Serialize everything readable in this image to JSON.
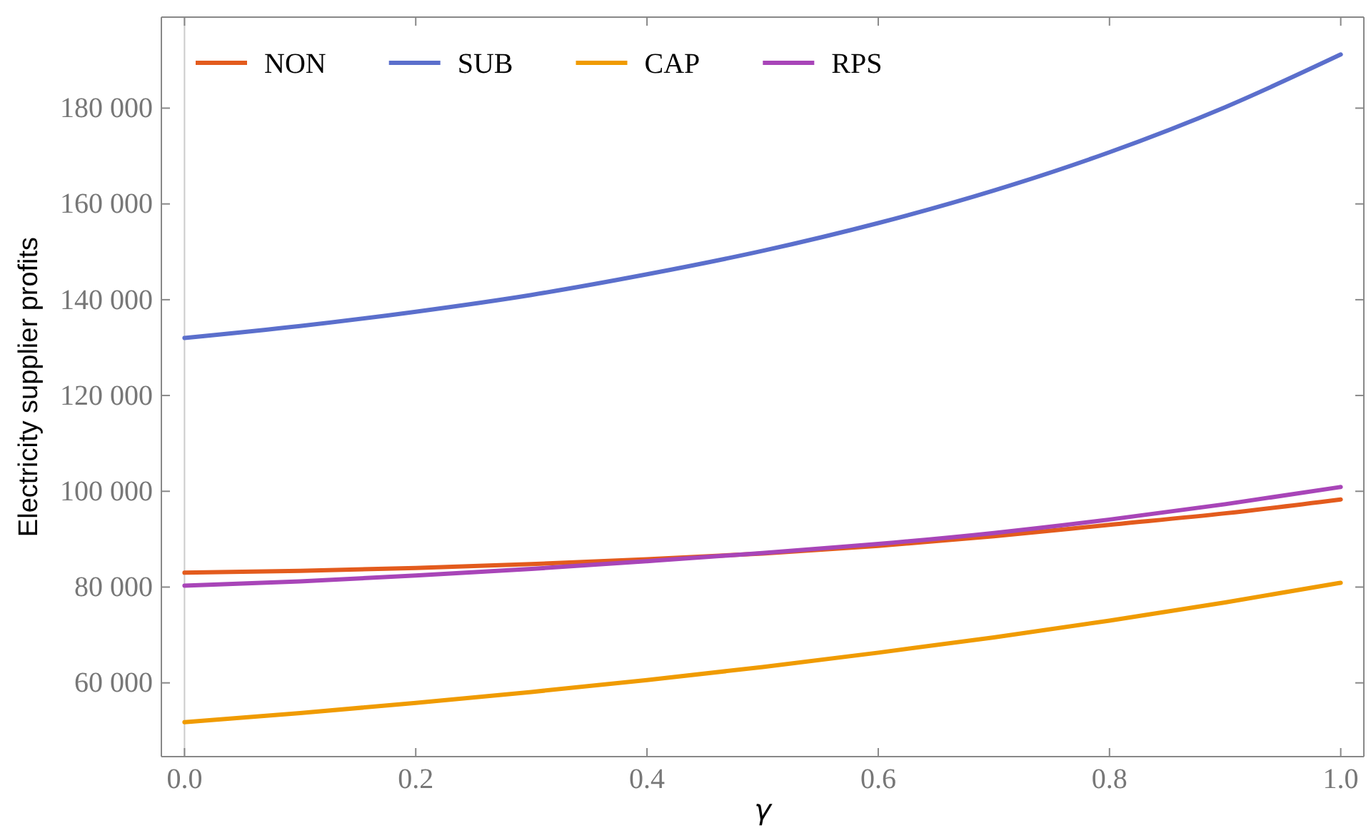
{
  "chart_data": {
    "type": "line",
    "xlabel": "γ",
    "ylabel": "Electricity supplier profits",
    "x": [
      0,
      0.1,
      0.2,
      0.3,
      0.4,
      0.5,
      0.6,
      0.7,
      0.8,
      0.9,
      1.0
    ],
    "series": [
      {
        "name": "NON",
        "color": "#e35b1d",
        "values": [
          83000,
          83400,
          84000,
          84800,
          85800,
          87000,
          88600,
          90600,
          93000,
          95400,
          98300
        ]
      },
      {
        "name": "SUB",
        "color": "#5b6fcc",
        "values": [
          132000,
          134500,
          137500,
          141000,
          145300,
          150200,
          156000,
          162800,
          170800,
          180200,
          191200
        ]
      },
      {
        "name": "CAP",
        "color": "#f09b00",
        "values": [
          51800,
          53700,
          55800,
          58100,
          60600,
          63300,
          66300,
          69500,
          73000,
          76800,
          80900
        ]
      },
      {
        "name": "RPS",
        "color": "#a845b8",
        "values": [
          80300,
          81200,
          82400,
          83800,
          85400,
          87100,
          89000,
          91300,
          94100,
          97300,
          100900
        ]
      }
    ],
    "xlim": [
      -0.02,
      1.02
    ],
    "ylim": [
      44600,
      199000
    ],
    "xticks": [
      {
        "value": 0,
        "label": "0.0"
      },
      0.2,
      0.4,
      0.6,
      0.8,
      {
        "value": 1,
        "label": "1.0"
      }
    ],
    "yticks": [
      {
        "value": 60000,
        "label": "60 000"
      },
      {
        "value": 80000,
        "label": "80 000"
      },
      {
        "value": 100000,
        "label": "100 000"
      },
      {
        "value": 120000,
        "label": "120 000"
      },
      {
        "value": 140000,
        "label": "140 000"
      },
      {
        "value": 160000,
        "label": "160 000"
      },
      {
        "value": 180000,
        "label": "180 000"
      }
    ],
    "ref_lines": [
      {
        "axis": "x",
        "value": 0,
        "color": "#cccccc"
      }
    ],
    "legend": "top left",
    "grid": false,
    "marker": "none",
    "line_style": "solid"
  }
}
